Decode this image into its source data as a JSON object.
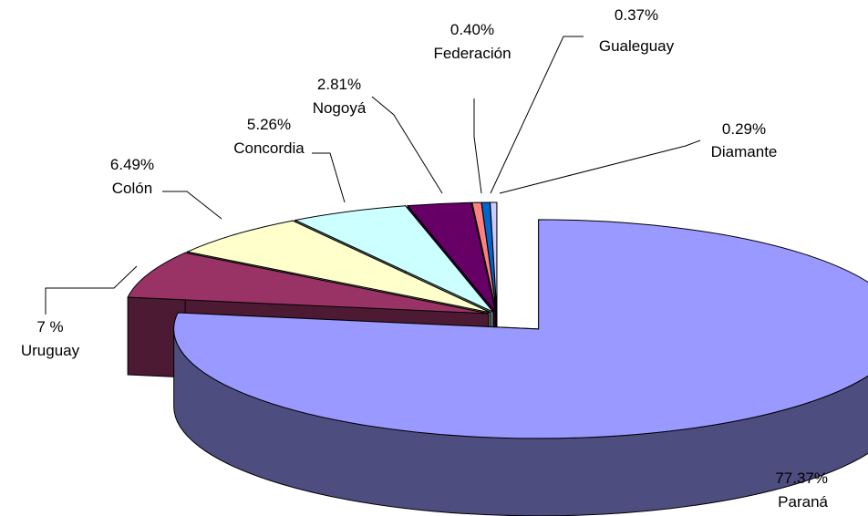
{
  "chart_data": {
    "type": "pie",
    "style": "3d-exploded",
    "legend": "none",
    "slices": [
      {
        "name": "Paraná",
        "value": 77.37,
        "label": "77.37%",
        "color": "#9999ff",
        "side_color": "#4d4d80"
      },
      {
        "name": "Uruguay",
        "value": 7,
        "label": "7 %",
        "color": "#993366",
        "side_color": "#4d1a33"
      },
      {
        "name": "Colón",
        "value": 6.49,
        "label": "6.49%",
        "color": "#ffffcc",
        "side_color": "#808066"
      },
      {
        "name": "Concordia",
        "value": 5.26,
        "label": "5.26%",
        "color": "#ccffff",
        "side_color": "#668080"
      },
      {
        "name": "Nogoyá",
        "value": 2.81,
        "label": "2.81%",
        "color": "#660066",
        "side_color": "#330033"
      },
      {
        "name": "Federación",
        "value": 0.4,
        "label": "0.40%",
        "color": "#ff8080",
        "side_color": "#804040"
      },
      {
        "name": "Gualeguay",
        "value": 0.37,
        "label": "0.37%",
        "color": "#0066cc",
        "side_color": "#003366"
      },
      {
        "name": "Diamante",
        "value": 0.29,
        "label": "0.29%",
        "color": "#ccccff",
        "side_color": "#666680"
      }
    ]
  }
}
